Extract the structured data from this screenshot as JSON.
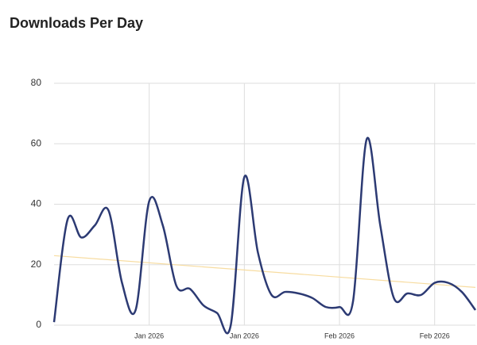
{
  "chart_data": {
    "type": "line",
    "title": "Downloads Per Day",
    "categories": [
      null,
      null,
      null,
      null,
      null,
      null,
      null,
      "Jan 2026",
      null,
      null,
      null,
      null,
      null,
      null,
      "Jan 2026",
      null,
      null,
      null,
      null,
      null,
      null,
      "Feb 2026",
      null,
      null,
      null,
      null,
      null,
      null,
      "Feb 2026",
      null,
      null,
      null
    ],
    "series": [
      {
        "color": "#2c3a73",
        "values": [
          1,
          35,
          29,
          33,
          38,
          14,
          5,
          41,
          33,
          13,
          12,
          6.5,
          4,
          0,
          49,
          24,
          10,
          11,
          10.5,
          9,
          6,
          6,
          8,
          61.5,
          33,
          9,
          10.5,
          10,
          14,
          14,
          11,
          5
        ]
      }
    ],
    "trend": {
      "color": "#f7dca0",
      "values": [
        23,
        12.5
      ]
    },
    "ylim": [
      0,
      80
    ],
    "yticks": [
      0,
      20,
      40,
      60,
      80
    ],
    "grid": true
  }
}
